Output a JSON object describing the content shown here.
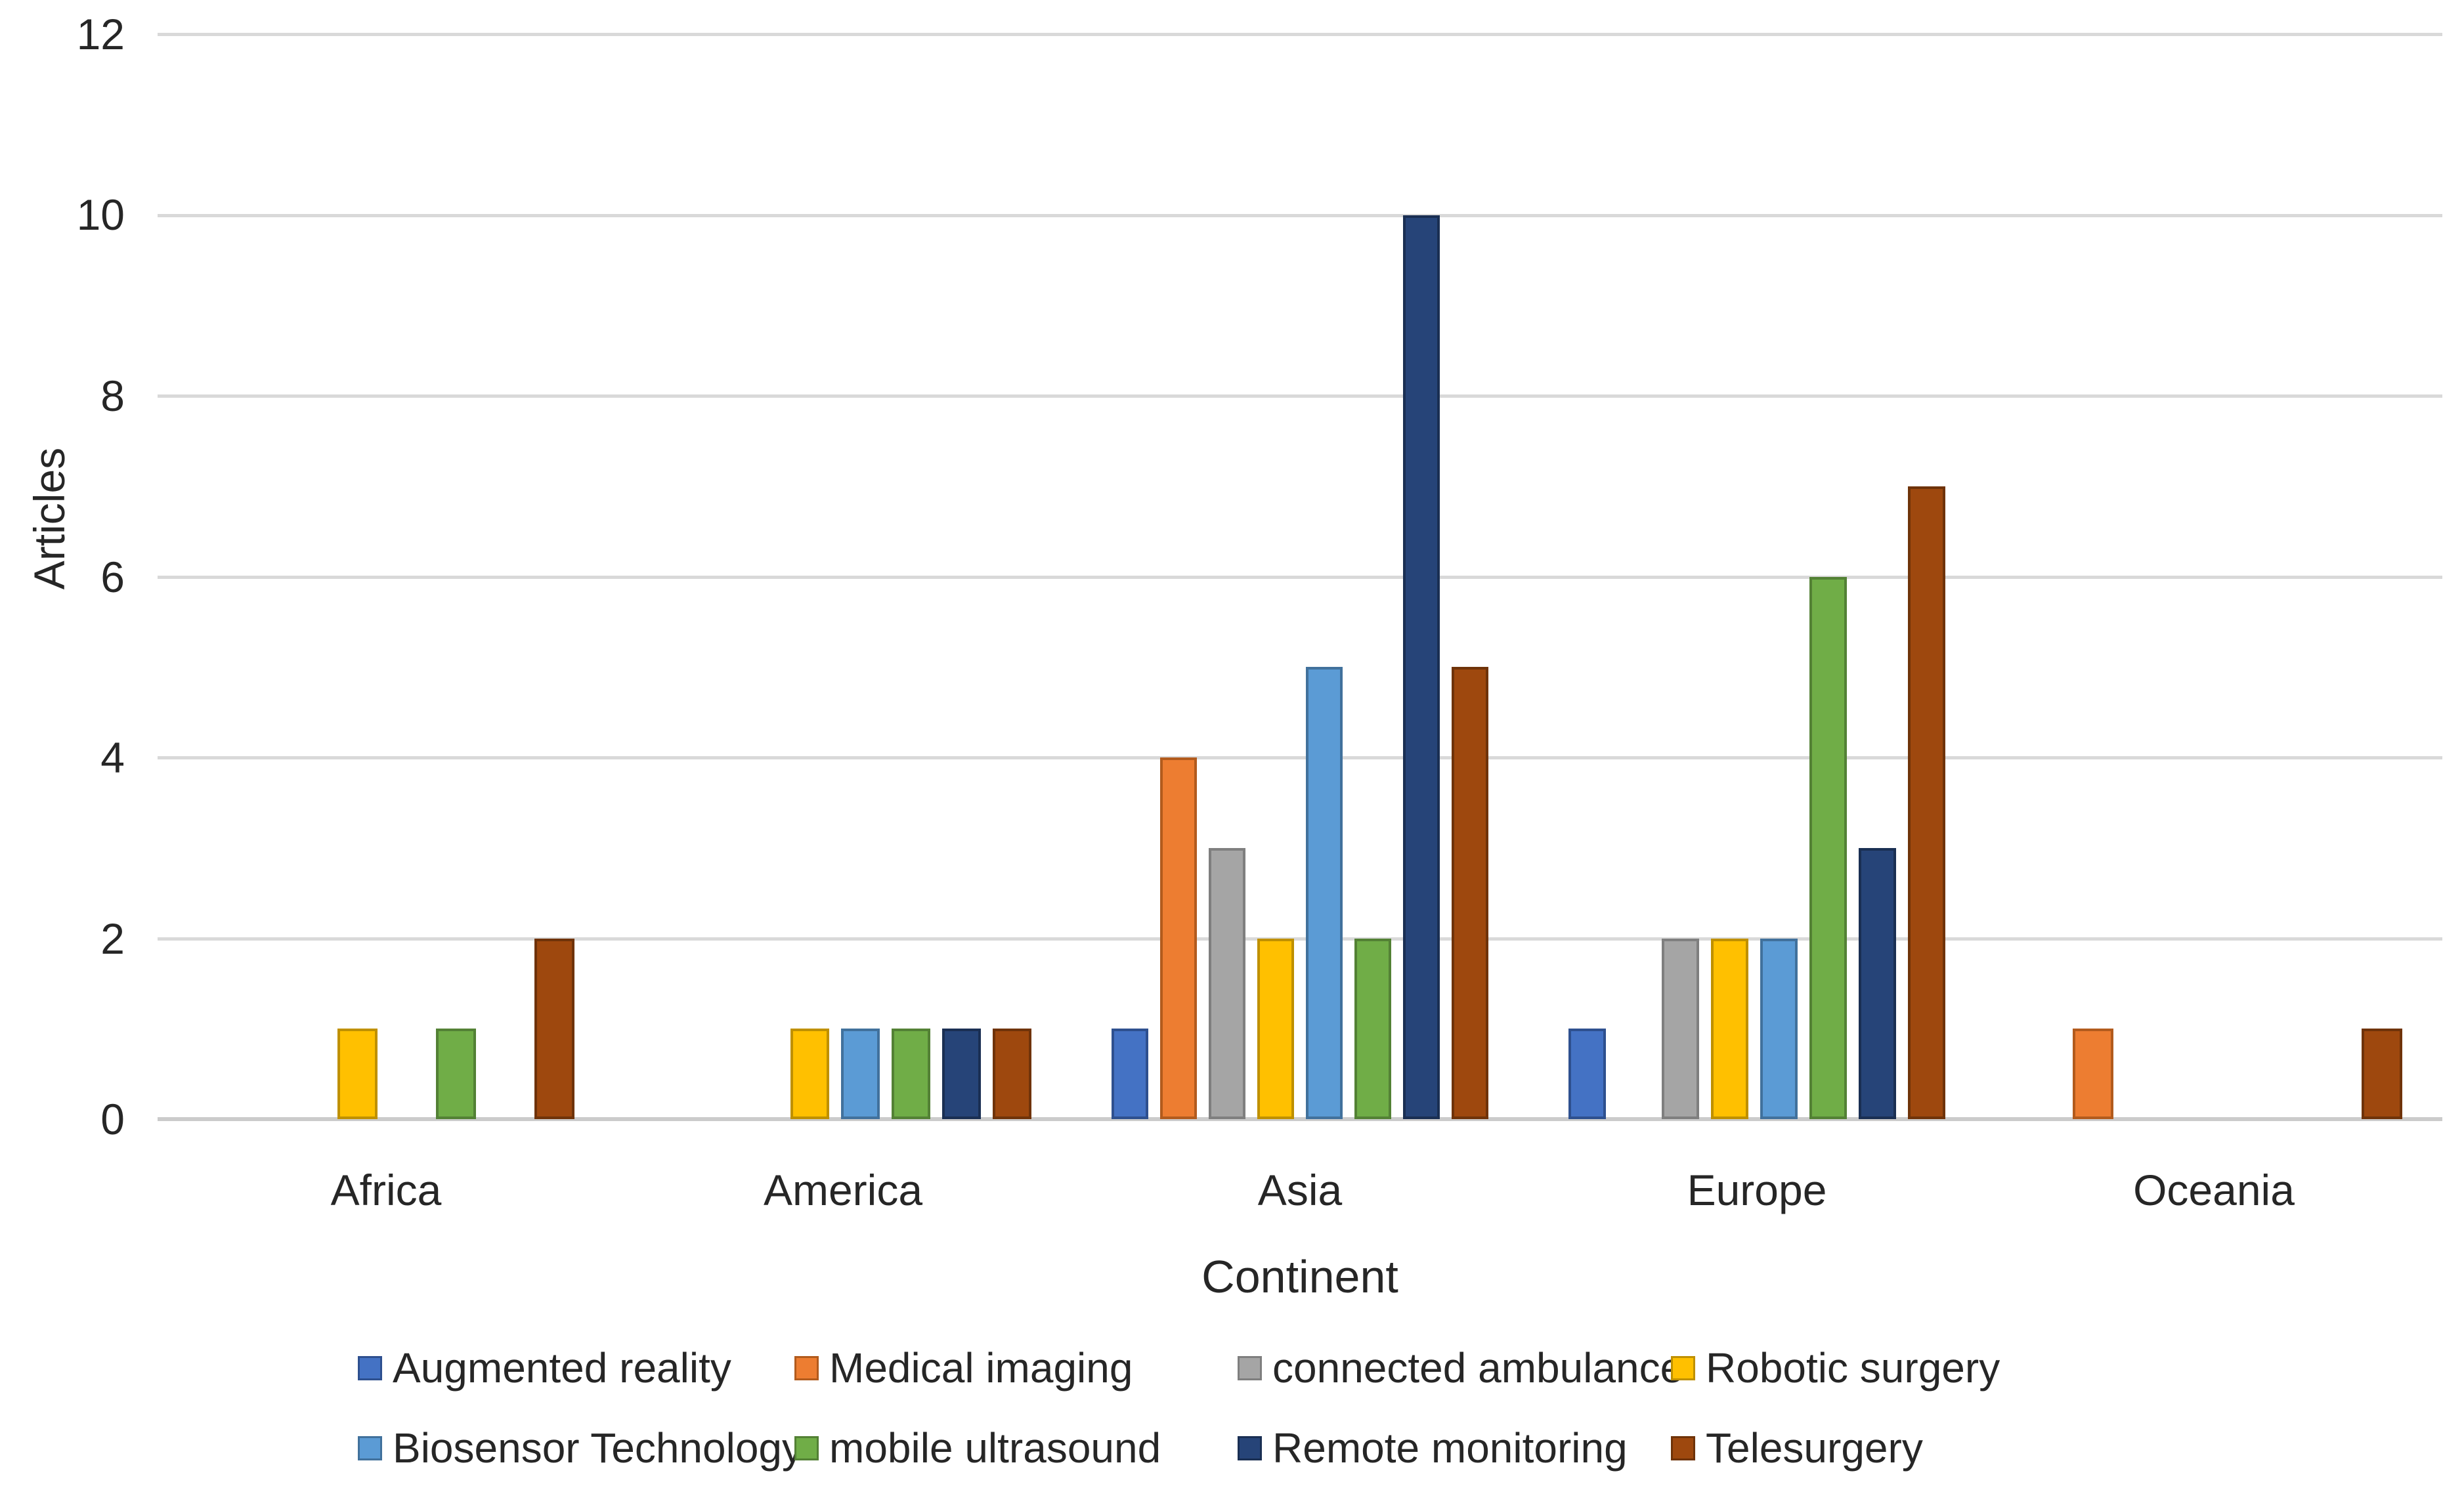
{
  "chart_data": {
    "type": "bar",
    "title": "",
    "xlabel": "Continent",
    "ylabel": "Articles",
    "ylim": [
      0,
      12
    ],
    "ytick_step": 2,
    "yticks": [
      0,
      2,
      4,
      6,
      8,
      10,
      12
    ],
    "grid": "horizontal",
    "legend_position": "bottom",
    "legend_columns": 4,
    "categories": [
      "Africa",
      "America",
      "Asia",
      "Europe",
      "Oceania"
    ],
    "series": [
      {
        "name": "Augmented reality",
        "color": "#4472C4",
        "border_color": "#2E508F",
        "values": [
          0,
          0,
          1,
          1,
          0
        ]
      },
      {
        "name": "Medical imaging",
        "color": "#ED7D31",
        "border_color": "#B25B1D",
        "values": [
          0,
          0,
          4,
          0,
          1
        ]
      },
      {
        "name": "connected ambulance",
        "color": "#A5A5A5",
        "border_color": "#7F7F7F",
        "values": [
          0,
          0,
          3,
          2,
          0
        ]
      },
      {
        "name": "Robotic surgery",
        "color": "#FFC000",
        "border_color": "#BF9000",
        "values": [
          1,
          1,
          2,
          2,
          0
        ]
      },
      {
        "name": "Biosensor Technology",
        "color": "#5B9BD5",
        "border_color": "#41719C",
        "values": [
          0,
          1,
          5,
          2,
          0
        ]
      },
      {
        "name": "mobile ultrasound",
        "color": "#70AD47",
        "border_color": "#538135",
        "values": [
          1,
          1,
          2,
          6,
          0
        ]
      },
      {
        "name": "Remote monitoring",
        "color": "#264478",
        "border_color": "#1A2F53",
        "values": [
          0,
          1,
          10,
          3,
          0
        ]
      },
      {
        "name": "Telesurgery",
        "color": "#9E480E",
        "border_color": "#6F3309",
        "values": [
          2,
          1,
          5,
          7,
          1
        ]
      }
    ]
  },
  "page": {
    "background": "#FFFFFF",
    "text_color": "#262626",
    "gridline_color": "#D9D9D9",
    "axis_line_color": "#CBCBCB"
  }
}
